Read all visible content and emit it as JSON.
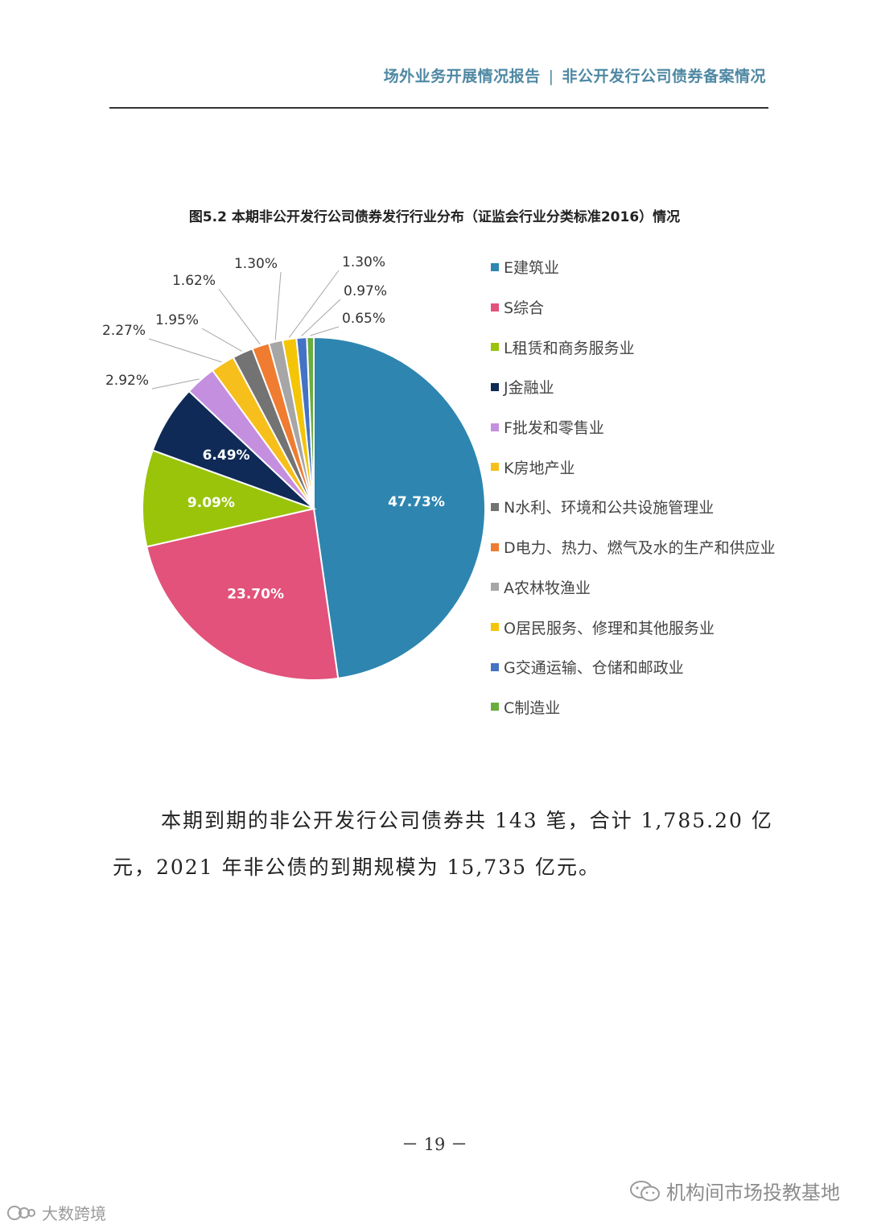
{
  "header": {
    "left": "场外业务开展情况报告",
    "separator": "|",
    "right": "非公开发行公司债券备案情况"
  },
  "figure_title": "图5.2 本期非公开发行公司债券发行行业分布（证监会行业分类标准2016）情况",
  "chart_data": {
    "type": "pie",
    "title": "图5.2 本期非公开发行公司债券发行行业分布（证监会行业分类标准2016）情况",
    "start_angle_deg": 0,
    "direction": "clockwise",
    "legend_position": "right",
    "slices": [
      {
        "label": "E建筑业",
        "value": 47.73,
        "display": "47.73%",
        "color": "#2e86b0",
        "label_placement": "inside"
      },
      {
        "label": "S综合",
        "value": 23.7,
        "display": "23.70%",
        "color": "#e2527a",
        "label_placement": "inside"
      },
      {
        "label": "L租赁和商务服务业",
        "value": 9.09,
        "display": "9.09%",
        "color": "#99c40a",
        "label_placement": "inside"
      },
      {
        "label": "J金融业",
        "value": 6.49,
        "display": "6.49%",
        "color": "#0f2a57",
        "label_placement": "inside"
      },
      {
        "label": "F批发和零售业",
        "value": 2.92,
        "display": "2.92%",
        "color": "#c58fe0",
        "label_placement": "outside"
      },
      {
        "label": "K房地产业",
        "value": 2.27,
        "display": "2.27%",
        "color": "#f7bf1b",
        "label_placement": "outside"
      },
      {
        "label": "N水利、环境和公共设施管理业",
        "value": 1.95,
        "display": "1.95%",
        "color": "#737373",
        "label_placement": "outside"
      },
      {
        "label": "D电力、热力、燃气及水的生产和供应业",
        "value": 1.62,
        "display": "1.62%",
        "color": "#ef7c30",
        "label_placement": "outside"
      },
      {
        "label": "A农林牧渔业",
        "value": 1.3,
        "display": "1.30%",
        "color": "#a6a6a6",
        "label_placement": "outside"
      },
      {
        "label": "O居民服务、修理和其他服务业",
        "value": 1.3,
        "display": "1.30%",
        "color": "#f4c406",
        "label_placement": "outside"
      },
      {
        "label": "G交通运输、仓储和邮政业",
        "value": 0.97,
        "display": "0.97%",
        "color": "#4472c4",
        "label_placement": "outside"
      },
      {
        "label": "C制造业",
        "value": 0.65,
        "display": "0.65%",
        "color": "#6aad3f",
        "label_placement": "outside"
      }
    ]
  },
  "body": {
    "paragraph_line1": "本期到期的非公开发行公司债券共 143 笔，合计 1,785.20 亿",
    "paragraph_line2": "元，2021 年非公债的到期规模为 15,735 亿元。"
  },
  "page_number": "－ 19 －",
  "watermarks": {
    "right_text": "机构间市场投教基地",
    "left_text": "大数跨境"
  }
}
